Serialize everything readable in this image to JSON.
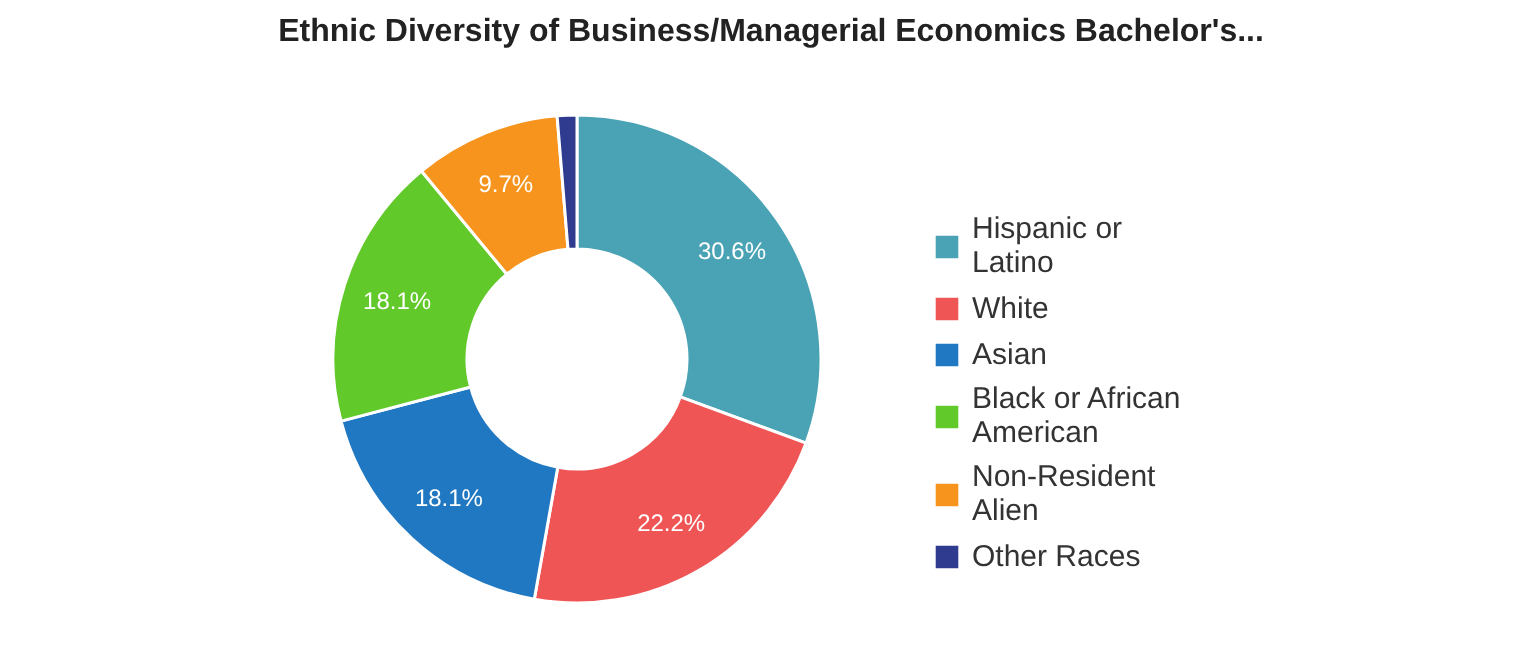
{
  "chart_data": {
    "type": "donut",
    "title": "Ethnic Diversity of Business/Managerial Economics Bachelor's...",
    "categories": [
      "Hispanic or Latino",
      "White",
      "Asian",
      "Black or African American",
      "Non-Resident Alien",
      "Other Races"
    ],
    "values": [
      30.6,
      22.2,
      18.1,
      18.1,
      9.7,
      1.3
    ],
    "colors": [
      "#4aa3b5",
      "#f05555",
      "#1f78c1",
      "#62c92b",
      "#f7941d",
      "#2e3b8f"
    ],
    "value_labels": [
      "30.6%",
      "22.2%",
      "18.1%",
      "18.1%",
      "9.7%",
      null
    ],
    "legend": "right"
  }
}
